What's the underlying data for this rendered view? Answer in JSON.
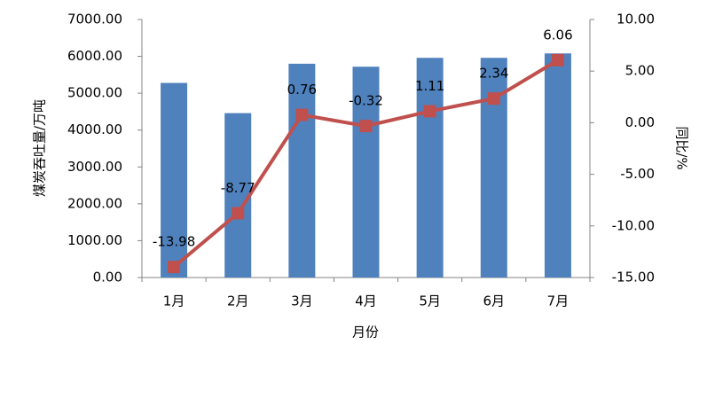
{
  "chart_data": {
    "type": "bar",
    "x_label": "月份",
    "y_label": "煤炭吞吐量/万吨",
    "y2_label": "同比/%",
    "categories": [
      "1月",
      "2月",
      "3月",
      "4月",
      "5月",
      "6月",
      "7月"
    ],
    "series": [
      {
        "type": "bar",
        "color": "#4f81bd",
        "values": [
          5280,
          4460,
          5800,
          5720,
          5960,
          5960,
          6080
        ]
      },
      {
        "type": "line",
        "axis": "y2",
        "color": "#c0504d",
        "values": [
          -13.98,
          -8.77,
          0.76,
          -0.32,
          1.11,
          2.34,
          6.06
        ]
      }
    ],
    "ylim": [
      0,
      7000
    ],
    "yticks": [
      {
        "value": 0,
        "label": "0.00"
      },
      {
        "value": 1000,
        "label": "1000.00"
      },
      {
        "value": 2000,
        "label": "2000.00"
      },
      {
        "value": 3000,
        "label": "3000.00"
      },
      {
        "value": 4000,
        "label": "4000.00"
      },
      {
        "value": 5000,
        "label": "5000.00"
      },
      {
        "value": 6000,
        "label": "6000.00"
      },
      {
        "value": 7000,
        "label": "7000.00"
      }
    ],
    "y2lim": [
      -15,
      10
    ],
    "y2ticks": [
      {
        "value": -15,
        "label": "-15.00"
      },
      {
        "value": -10,
        "label": "-10.00"
      },
      {
        "value": -5,
        "label": "-5.00"
      },
      {
        "value": 0,
        "label": "0.00"
      },
      {
        "value": 5,
        "label": "5.00"
      },
      {
        "value": 10,
        "label": "10.00"
      }
    ],
    "grid": false
  }
}
